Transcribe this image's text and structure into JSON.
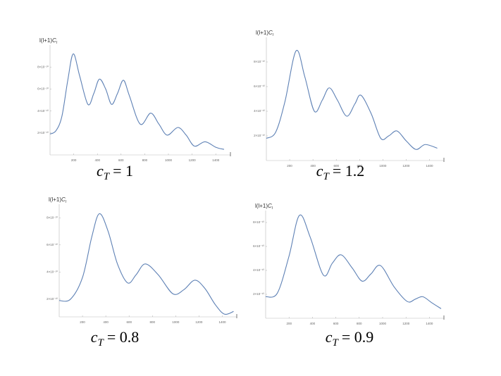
{
  "chart_data": [
    {
      "type": "line",
      "title": [
        "c",
        "T",
        "= 1"
      ],
      "ylabel": [
        "l(l+1)",
        "C",
        "l"
      ],
      "xlim": [
        0,
        1500
      ],
      "ylim": [
        0,
        1e-09
      ],
      "xticks": [
        200,
        400,
        600,
        800,
        1000,
        1200,
        1400
      ],
      "yticks": [
        {
          "value": 2e-10,
          "label": "2×10⁻¹⁰"
        },
        {
          "value": 4e-10,
          "label": "4×10⁻¹⁰"
        },
        {
          "value": 6e-10,
          "label": "6×10⁻¹⁰"
        },
        {
          "value": 8e-10,
          "label": "8×10⁻¹⁰"
        }
      ],
      "color": "#5e81b5",
      "x": [
        0,
        50,
        100,
        150,
        196,
        250,
        320,
        370,
        417,
        470,
        520,
        570,
        620,
        670,
        762,
        850,
        920,
        990,
        1080,
        1150,
        1220,
        1310,
        1400,
        1470
      ],
      "values": [
        1.9e-10,
        2.2e-10,
        3.5e-10,
        6.8e-10,
        9.2e-10,
        7.2e-10,
        4.6e-10,
        5.6e-10,
        6.9e-10,
        6e-10,
        4.6e-10,
        5.6e-10,
        6.8e-10,
        5.4e-10,
        2.8e-10,
        3.8e-10,
        2.8e-10,
        1.8e-10,
        2.5e-10,
        1.8e-10,
        8e-11,
        1.2e-10,
        7e-11,
        5e-11
      ]
    },
    {
      "type": "line",
      "title": [
        "c",
        "T",
        "= 1.2"
      ],
      "ylabel": [
        "l(l+1)",
        "C",
        "l"
      ],
      "xlim": [
        0,
        1500
      ],
      "ylim": [
        0,
        1e-09
      ],
      "xticks": [
        200,
        400,
        600,
        800,
        1000,
        1200,
        1400
      ],
      "yticks": [
        {
          "value": 2e-10,
          "label": "2×10⁻¹⁰"
        },
        {
          "value": 4e-10,
          "label": "4×10⁻¹⁰"
        },
        {
          "value": 6e-10,
          "label": "6×10⁻¹⁰"
        },
        {
          "value": 8e-10,
          "label": "8×10⁻¹⁰"
        }
      ],
      "color": "#5e81b5",
      "x": [
        0,
        80,
        160,
        255,
        330,
        412,
        480,
        540,
        610,
        690,
        760,
        812,
        900,
        982,
        1050,
        1121,
        1200,
        1285,
        1364,
        1467
      ],
      "values": [
        1.8e-10,
        2.3e-10,
        4.8e-10,
        8.9e-10,
        6.8e-10,
        4e-10,
        4.9e-10,
        5.9e-10,
        4.9e-10,
        3.6e-10,
        4.6e-10,
        5.3e-10,
        3.8e-10,
        1.8e-10,
        2e-10,
        2.4e-10,
        1.6e-10,
        9e-11,
        1.3e-10,
        1e-10
      ]
    },
    {
      "type": "line",
      "title": [
        "c",
        "T",
        "= 0.8"
      ],
      "ylabel": [
        "l(l+1)",
        "C",
        "l"
      ],
      "xlim": [
        0,
        1500
      ],
      "ylim": [
        7e-11,
        9e-10
      ],
      "xticks": [
        200,
        400,
        600,
        800,
        1000,
        1200,
        1400
      ],
      "yticks": [
        {
          "value": 2e-10,
          "label": "2×10⁻¹⁰"
        },
        {
          "value": 4e-10,
          "label": "4×10⁻¹⁰"
        },
        {
          "value": 6e-10,
          "label": "6×10⁻¹⁰"
        },
        {
          "value": 8e-10,
          "label": "8×10⁻¹⁰"
        }
      ],
      "color": "#5e81b5",
      "x": [
        0,
        97,
        200,
        280,
        345,
        420,
        500,
        588,
        660,
        739,
        850,
        976,
        1070,
        1164,
        1250,
        1340,
        1418,
        1497
      ],
      "values": [
        1.9e-10,
        2e-10,
        3.6e-10,
        6.6e-10,
        8.3e-10,
        7e-10,
        4.6e-10,
        3.2e-10,
        3.8e-10,
        4.6e-10,
        3.8e-10,
        2.4e-10,
        2.7e-10,
        3.4e-10,
        2.8e-10,
        1.6e-10,
        9e-11,
        1.1e-10
      ]
    },
    {
      "type": "line",
      "title": [
        "c",
        "T",
        "= 0.9"
      ],
      "ylabel": [
        "l(l+1)",
        "C",
        "l"
      ],
      "xlim": [
        0,
        1500
      ],
      "ylim": [
        0,
        9e-10
      ],
      "xticks": [
        200,
        400,
        600,
        800,
        1000,
        1200,
        1400
      ],
      "yticks": [
        {
          "value": 2e-10,
          "label": "2×10⁻¹⁰"
        },
        {
          "value": 4e-10,
          "label": "4×10⁻¹⁰"
        },
        {
          "value": 6e-10,
          "label": "6×10⁻¹⁰"
        },
        {
          "value": 8e-10,
          "label": "8×10⁻¹⁰"
        }
      ],
      "color": "#5e81b5",
      "x": [
        0,
        100,
        200,
        289,
        380,
        494,
        570,
        645,
        740,
        825,
        900,
        982,
        1100,
        1211,
        1280,
        1343,
        1420,
        1500
      ],
      "values": [
        1.8e-10,
        2.1e-10,
        5.2e-10,
        8.6e-10,
        6.8e-10,
        3.6e-10,
        4.6e-10,
        5.3e-10,
        4.2e-10,
        3.1e-10,
        3.7e-10,
        4.4e-10,
        2.6e-10,
        1.4e-10,
        1.6e-10,
        1.8e-10,
        1.3e-10,
        8e-11
      ]
    }
  ]
}
